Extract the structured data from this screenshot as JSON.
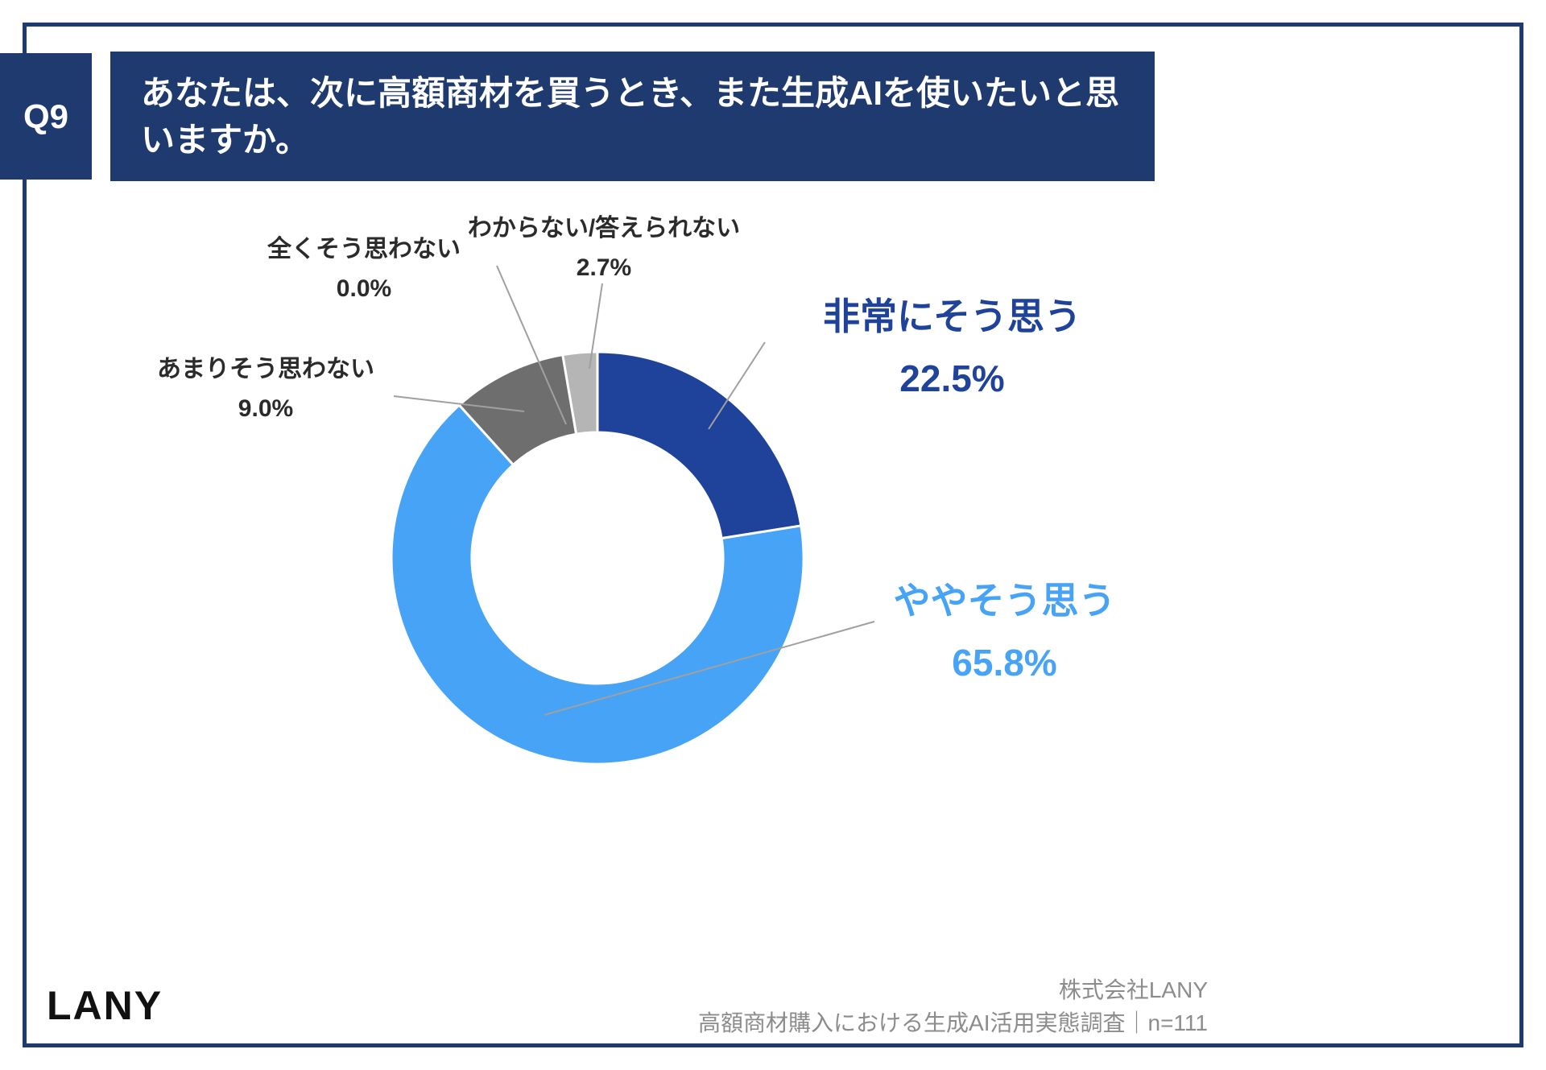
{
  "page": {
    "question_tag": "Q9",
    "title": "あなたは、次に高額商材を買うとき、また生成AIを使いたいと思いますか。"
  },
  "footer": {
    "logo": "LANY",
    "company": "株式会社LANY",
    "survey": "高額商材購入における生成AI活用実態調査｜n=111"
  },
  "colors": {
    "navy": "#1e3a6e",
    "dark_blue": "#1f429b",
    "light_blue": "#47a3f6",
    "dark_gray": "#6e6e6e",
    "light_gray": "#b5b5b5",
    "leader_line": "#a0a0a0",
    "footer_text": "#8c8c8c"
  },
  "chart_data": {
    "type": "pie",
    "donut": true,
    "inner_radius_ratio": 0.61,
    "start_angle_deg": 0,
    "direction": "clockwise",
    "title": "あなたは、次に高額商材を買うとき、また生成AIを使いたいと思いますか。",
    "sample_size": "n=111",
    "legend_position": "callout-labels",
    "segments": [
      {
        "label": "非常にそう思う",
        "value": 22.5,
        "display": "22.5%",
        "color": "#1f429b"
      },
      {
        "label": "ややそう思う",
        "value": 65.8,
        "display": "65.8%",
        "color": "#47a3f6"
      },
      {
        "label": "あまりそう思わない",
        "value": 9.0,
        "display": "9.0%",
        "color": "#6e6e6e"
      },
      {
        "label": "全くそう思わない",
        "value": 0.0,
        "display": "0.0%",
        "color": "#4a4a4a"
      },
      {
        "label": "わからない/答えられない",
        "value": 2.7,
        "display": "2.7%",
        "color": "#b5b5b5"
      }
    ]
  }
}
